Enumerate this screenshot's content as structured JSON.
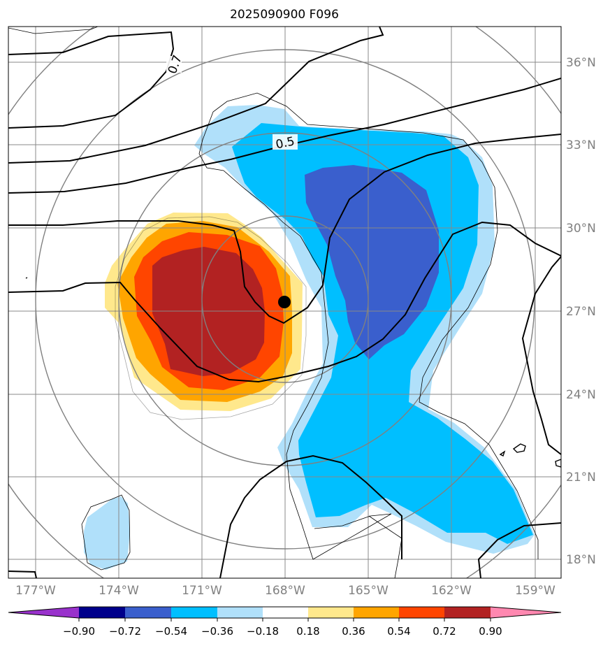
{
  "title": "2025090900 F096",
  "lat_labels": [
    "36°N",
    "33°N",
    "30°N",
    "27°N",
    "24°N",
    "21°N",
    "18°N"
  ],
  "lon_labels": [
    "177°W",
    "174°W",
    "171°W",
    "168°W",
    "165°W",
    "162°W",
    "159°W"
  ],
  "contour_labels": [
    "0.7",
    "0.5"
  ],
  "colorbar": {
    "ticks": [
      "−0.90",
      "−0.72",
      "−0.54",
      "−0.36",
      "−0.18",
      "0.18",
      "0.36",
      "0.54",
      "0.72",
      "0.90"
    ],
    "colors": [
      "#9932cc",
      "#00008b",
      "#3a5fcd",
      "#00bfff",
      "#b0e0fa",
      "#ffffff",
      "#ffe88c",
      "#ffa500",
      "#ff4500",
      "#b22222",
      "#ff88b0"
    ]
  },
  "chart_data": {
    "type": "map",
    "title": "2025090900 F096",
    "extent": {
      "lon": [
        -178,
        -158
      ],
      "lat": [
        17,
        37
      ]
    },
    "field": "filled anomaly contours with black line contours",
    "levels": [
      -0.9,
      -0.72,
      -0.54,
      -0.36,
      -0.18,
      0.18,
      0.36,
      0.54,
      0.72,
      0.9
    ],
    "center_marker": {
      "lon": -168,
      "lat": 27.3
    },
    "positive_max_region": {
      "lon": -170.5,
      "lat": 27
    },
    "negative_max_region": {
      "lon": -164.5,
      "lat": 30
    }
  }
}
